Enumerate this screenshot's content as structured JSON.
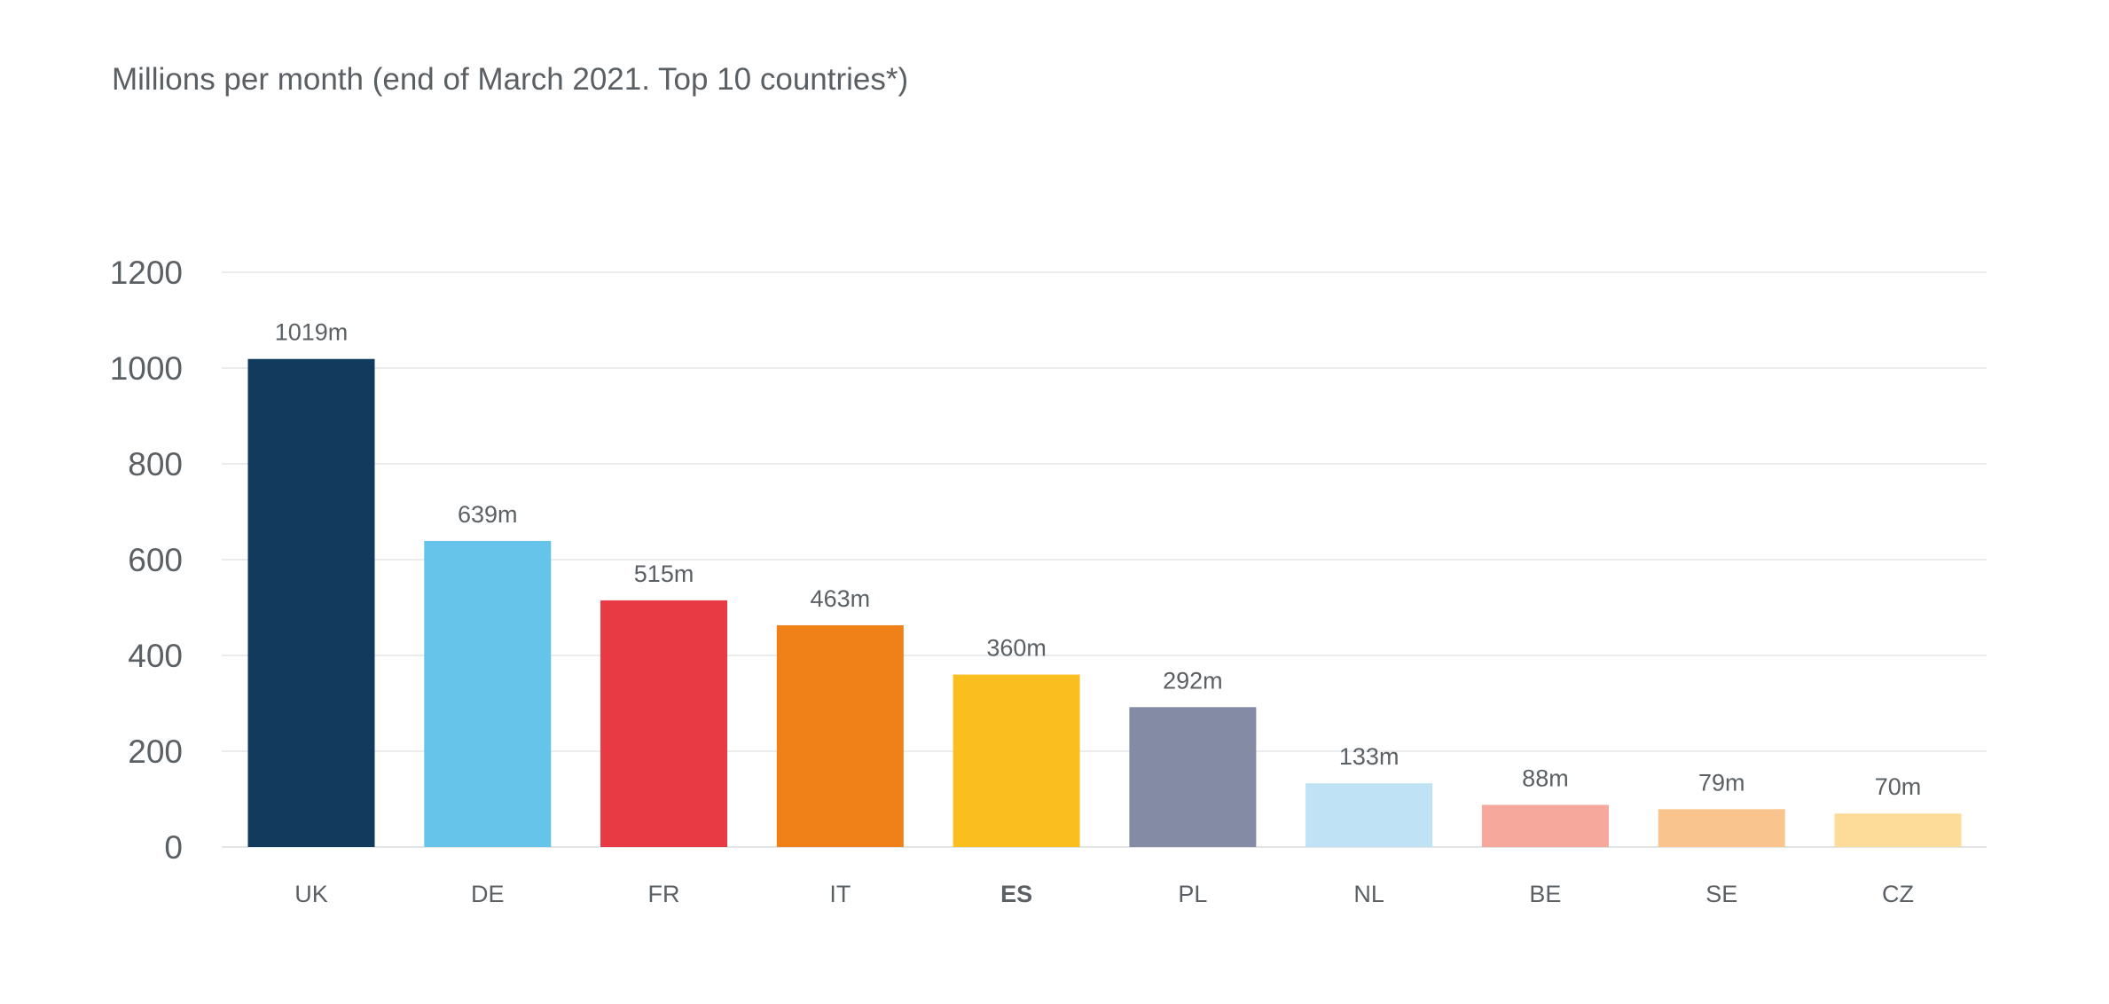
{
  "chart_data": {
    "type": "bar",
    "title": "Millions per month (end of March 2021. Top 10 countries*)",
    "xlabel": "",
    "ylabel": "",
    "ylim": [
      0,
      1200
    ],
    "yticks": [
      "0",
      "200",
      "400",
      "600",
      "800",
      "1000",
      "1200"
    ],
    "grid": true,
    "categories": [
      "UK",
      "DE",
      "FR",
      "IT",
      "ES",
      "PL",
      "NL",
      "BE",
      "SE",
      "CZ"
    ],
    "values": [
      1019,
      639,
      515,
      463,
      360,
      292,
      133,
      88,
      79,
      70
    ],
    "data_labels": [
      "1019m",
      "639m",
      "515m",
      "463m",
      "360m",
      "292m",
      "133m",
      "88m",
      "79m",
      "70m"
    ],
    "bold_categories": [
      "ES"
    ],
    "colors": [
      "#113a5c",
      "#66c3ea",
      "#e83a45",
      "#ef8118",
      "#fbbe1f",
      "#838ba5",
      "#bfe2f5",
      "#f5a89b",
      "#fac48f",
      "#fddb98"
    ]
  }
}
